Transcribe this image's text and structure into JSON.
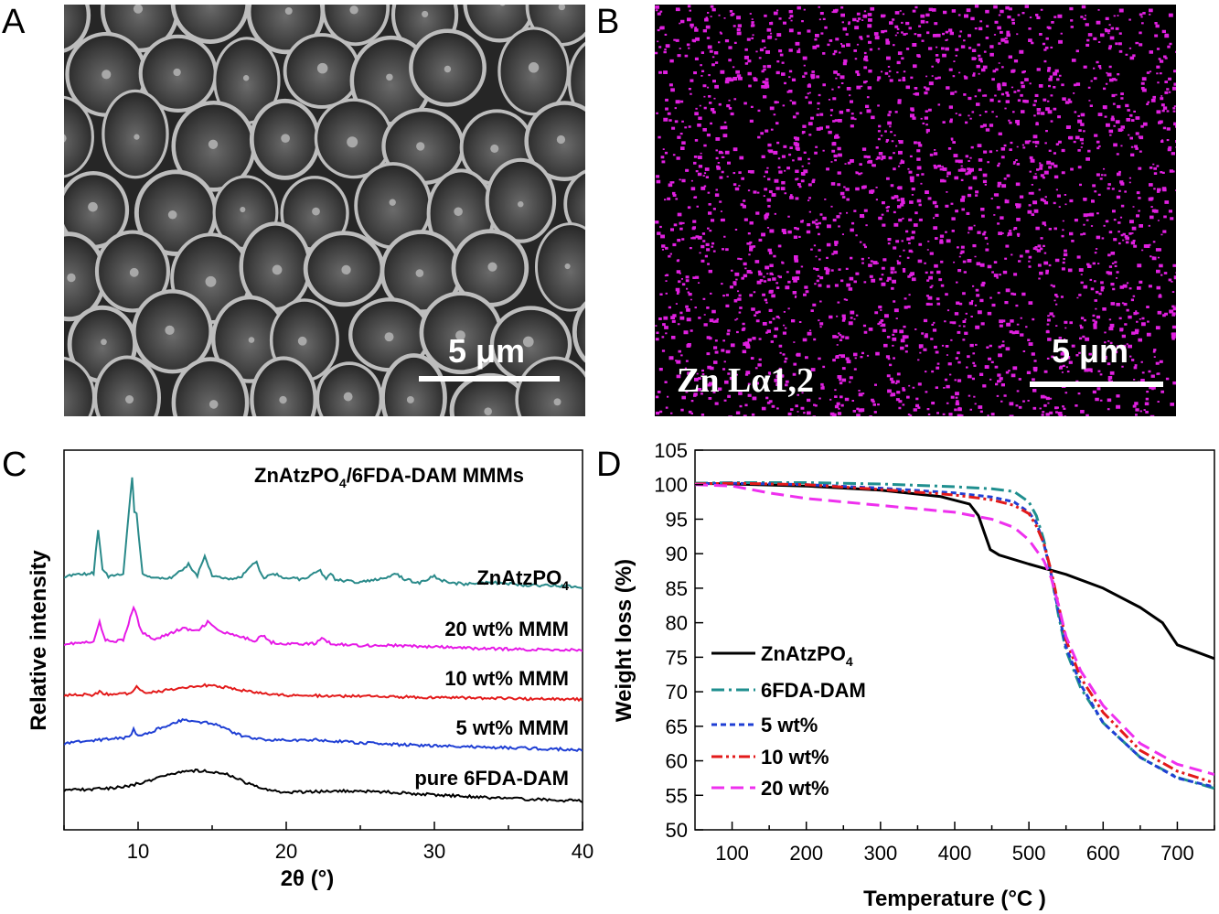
{
  "panels": {
    "a": {
      "label": "A",
      "scale_bar": "5 μm"
    },
    "b": {
      "label": "B",
      "scale_bar": "5 μm",
      "element_label": "Zn Lα1,2"
    },
    "c": {
      "label": "C"
    },
    "d": {
      "label": "D"
    }
  },
  "chart_data": [
    {
      "panel": "C",
      "type": "line",
      "title": "ZnAtzPO4/6FDA-DAM MMMs",
      "title_main": "ZnAtzPO",
      "title_sub": "4",
      "title_rest": "/6FDA-DAM MMMs",
      "xlabel": "2θ (°)",
      "ylabel": "Relative intensity",
      "xlim": [
        5,
        40
      ],
      "xticks": [
        "10",
        "20",
        "30",
        "40"
      ],
      "xtick_values": [
        10,
        20,
        30,
        40
      ],
      "yticks_shown": false,
      "series": [
        {
          "name": "ZnAtzPO4",
          "label_main": "ZnAtzPO",
          "label_sub": "4",
          "color": "#2a8a8a",
          "offset": 4,
          "x": [
            5,
            7,
            7.3,
            7.6,
            8,
            9,
            9.6,
            9.75,
            9.9,
            10.3,
            11,
            12,
            13,
            13.4,
            14,
            14.5,
            15,
            16,
            17,
            18,
            18.2,
            18.5,
            19,
            20,
            21,
            22,
            22.3,
            22.7,
            23,
            23.3,
            24,
            25,
            26,
            27,
            27.3,
            28,
            29,
            30,
            30.3,
            31,
            32,
            34,
            36,
            38,
            40
          ],
          "y": [
            0.4,
            0.5,
            1.9,
            0.6,
            0.4,
            0.5,
            3.6,
            2.5,
            2.4,
            0.5,
            0.35,
            0.3,
            0.6,
            0.8,
            0.4,
            1.1,
            0.4,
            0.3,
            0.4,
            0.9,
            0.6,
            0.3,
            0.5,
            0.35,
            0.3,
            0.5,
            0.6,
            0.3,
            0.5,
            0.3,
            0.25,
            0.2,
            0.3,
            0.4,
            0.5,
            0.3,
            0.2,
            0.4,
            0.3,
            0.2,
            0.15,
            0.2,
            0.12,
            0.1,
            0.05
          ]
        },
        {
          "name": "20 wt% MMM",
          "color": "#e619e6",
          "offset": 3,
          "x": [
            5,
            7,
            7.4,
            7.8,
            9,
            9.7,
            10.2,
            11,
            12,
            13,
            14,
            14.7,
            15.5,
            17,
            18,
            18.3,
            19,
            20,
            22,
            22.4,
            23,
            25,
            27,
            30,
            33,
            36,
            40
          ],
          "y": [
            0.2,
            0.25,
            0.9,
            0.3,
            0.3,
            1.4,
            0.6,
            0.35,
            0.5,
            0.7,
            0.6,
            0.9,
            0.6,
            0.4,
            0.3,
            0.5,
            0.25,
            0.2,
            0.2,
            0.4,
            0.2,
            0.15,
            0.15,
            0.1,
            0.05,
            0.02,
            0.0
          ]
        },
        {
          "name": "10 wt% MMM",
          "color": "#e31a1a",
          "offset": 2,
          "x": [
            5,
            7,
            7.4,
            8,
            9.5,
            9.9,
            10.4,
            12,
            14,
            15,
            17,
            19,
            22,
            25,
            28,
            32,
            36,
            40
          ],
          "y": [
            0.15,
            0.15,
            0.25,
            0.15,
            0.2,
            0.45,
            0.2,
            0.3,
            0.45,
            0.45,
            0.3,
            0.15,
            0.12,
            0.1,
            0.08,
            0.05,
            0.02,
            0.0
          ]
        },
        {
          "name": "5 wt% MMM",
          "color": "#1f3fd4",
          "offset": 1,
          "x": [
            5,
            7,
            8,
            9.4,
            9.7,
            10,
            11,
            12,
            13,
            14,
            15,
            16,
            17,
            18,
            20,
            22,
            24,
            27,
            30,
            34,
            40
          ],
          "y": [
            0.2,
            0.3,
            0.35,
            0.4,
            0.65,
            0.45,
            0.6,
            0.8,
            0.95,
            0.9,
            0.85,
            0.65,
            0.45,
            0.35,
            0.3,
            0.32,
            0.25,
            0.18,
            0.12,
            0.08,
            0.0
          ]
        },
        {
          "name": "pure 6FDA-DAM",
          "color": "#000000",
          "offset": 0,
          "x": [
            5,
            7,
            9,
            10,
            11,
            12,
            13,
            14,
            15,
            16,
            17,
            18,
            19,
            20,
            22,
            24,
            26,
            28,
            30,
            32,
            34,
            36,
            38,
            40
          ],
          "y": [
            0.35,
            0.38,
            0.45,
            0.55,
            0.7,
            0.85,
            0.95,
            0.98,
            0.95,
            0.85,
            0.65,
            0.45,
            0.32,
            0.28,
            0.3,
            0.32,
            0.3,
            0.26,
            0.2,
            0.15,
            0.1,
            0.06,
            0.03,
            0.0
          ]
        }
      ]
    },
    {
      "panel": "D",
      "type": "line",
      "xlabel": "Temperature (°C )",
      "ylabel": "Weight loss (%)",
      "xlim": [
        50,
        750
      ],
      "ylim": [
        50,
        105
      ],
      "xticks": [
        "100",
        "200",
        "300",
        "400",
        "500",
        "600",
        "700"
      ],
      "xtick_values": [
        100,
        200,
        300,
        400,
        500,
        600,
        700
      ],
      "yticks": [
        "50",
        "55",
        "60",
        "65",
        "70",
        "75",
        "80",
        "85",
        "90",
        "95",
        "100",
        "105"
      ],
      "ytick_values": [
        50,
        55,
        60,
        65,
        70,
        75,
        80,
        85,
        90,
        95,
        100,
        105
      ],
      "legend_position": "lower-left",
      "series": [
        {
          "name": "ZnAtzPO4",
          "label_main": "ZnAtzPO",
          "label_sub": "4",
          "color": "#000000",
          "dash": "",
          "x": [
            50,
            100,
            200,
            300,
            380,
            420,
            432,
            440,
            448,
            460,
            500,
            550,
            600,
            650,
            680,
            700,
            720,
            750
          ],
          "y": [
            100.2,
            100.1,
            99.8,
            99.2,
            98.3,
            97.2,
            95.5,
            93,
            90.6,
            89.8,
            88.5,
            87.0,
            85.0,
            82.2,
            80.0,
            76.8,
            76.0,
            74.8
          ]
        },
        {
          "name": "6FDA-DAM",
          "color": "#1f8f8f",
          "dash": "14,5,3,5",
          "x": [
            50,
            100,
            200,
            300,
            400,
            450,
            480,
            500,
            510,
            520,
            530,
            540,
            550,
            570,
            600,
            650,
            700,
            750
          ],
          "y": [
            100.2,
            100.3,
            100.3,
            100.1,
            99.7,
            99.4,
            99.0,
            97.5,
            95.5,
            92.0,
            87.0,
            81.0,
            76.0,
            70.5,
            65.5,
            60.5,
            57.6,
            56.0
          ]
        },
        {
          "name": "5 wt%",
          "color": "#1f3fd4",
          "dash": "6,4",
          "x": [
            50,
            100,
            200,
            300,
            400,
            450,
            480,
            500,
            510,
            520,
            530,
            540,
            550,
            570,
            600,
            650,
            700,
            750
          ],
          "y": [
            100.1,
            100.2,
            100.0,
            99.5,
            98.8,
            98.2,
            97.5,
            96.0,
            94.5,
            91.5,
            87.0,
            81.5,
            76.5,
            71.0,
            65.5,
            60.5,
            57.5,
            56.2
          ]
        },
        {
          "name": "10 wt%",
          "color": "#e31a1a",
          "dash": "12,4,3,4,3,4",
          "x": [
            50,
            100,
            200,
            300,
            400,
            450,
            480,
            500,
            510,
            520,
            530,
            540,
            550,
            570,
            600,
            650,
            700,
            750
          ],
          "y": [
            100.1,
            100.2,
            100.0,
            99.3,
            98.5,
            97.8,
            97.0,
            95.8,
            94.0,
            91.5,
            87.5,
            82.5,
            77.5,
            72.0,
            67.0,
            61.5,
            58.5,
            56.8
          ]
        },
        {
          "name": "20 wt%",
          "color": "#ee30ee",
          "dash": "14,7",
          "x": [
            50,
            100,
            150,
            200,
            300,
            400,
            450,
            480,
            500,
            520,
            530,
            540,
            550,
            570,
            600,
            650,
            700,
            750
          ],
          "y": [
            100.0,
            99.8,
            98.8,
            98.0,
            97.0,
            96.0,
            95.0,
            93.8,
            92.0,
            89.0,
            86.5,
            82.5,
            78.0,
            73.0,
            68.0,
            62.5,
            59.5,
            58.0
          ]
        }
      ]
    }
  ]
}
